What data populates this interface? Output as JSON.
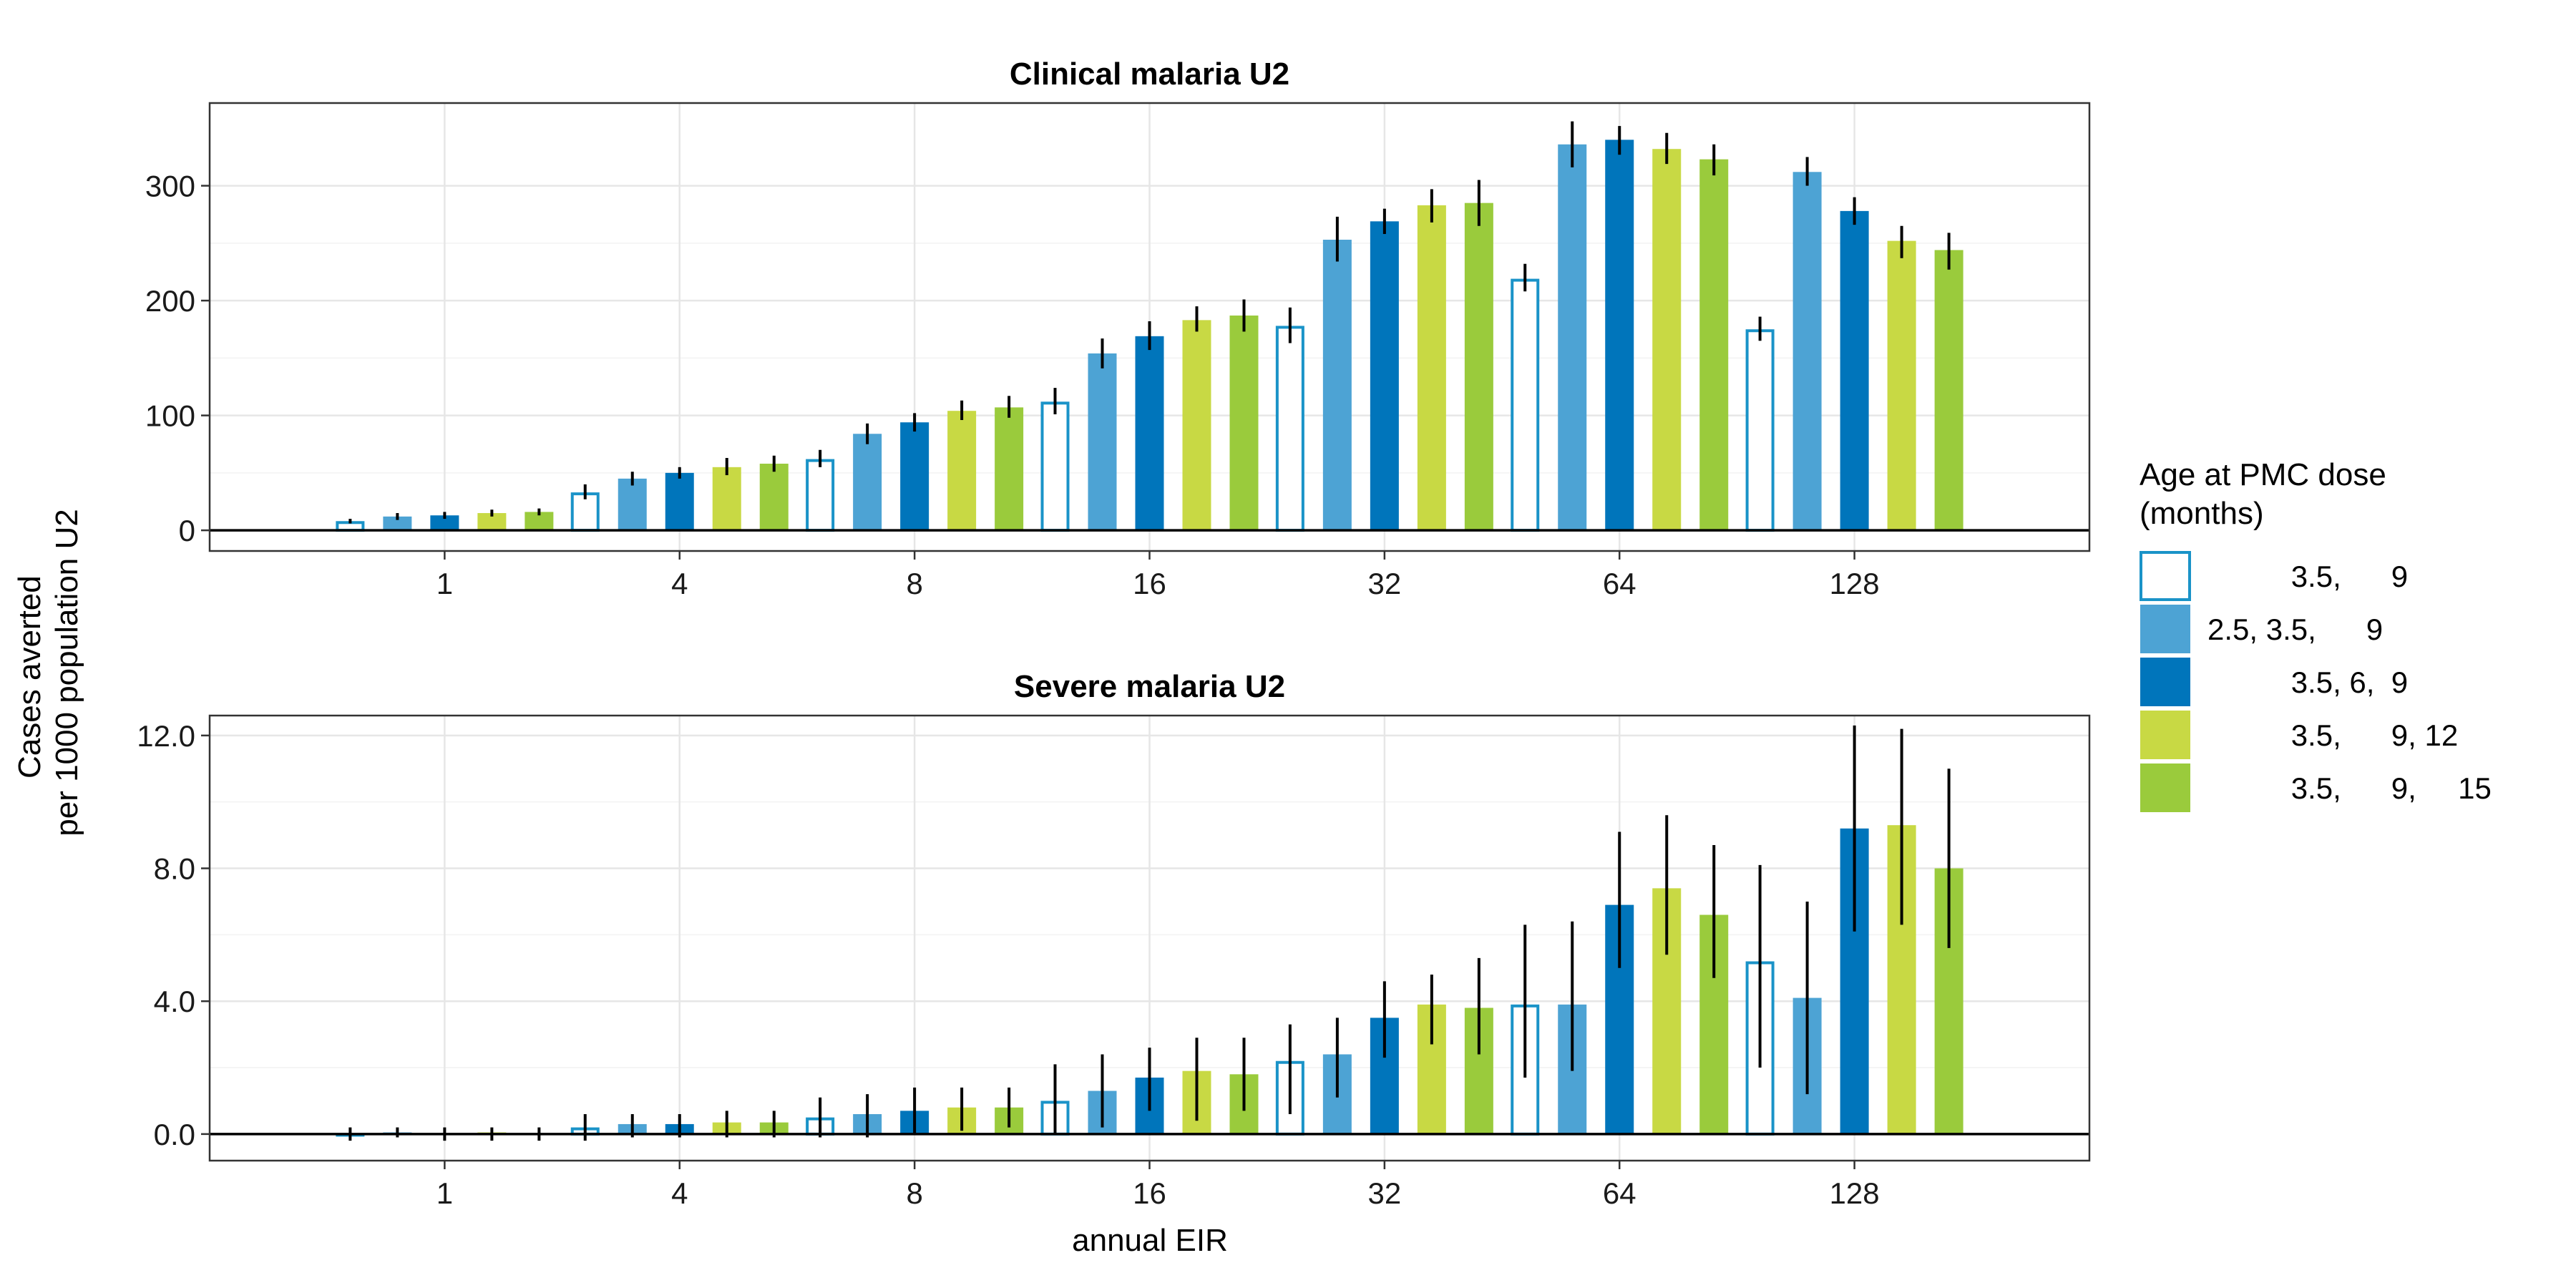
{
  "y_axis_title": [
    "Cases averted",
    "per 1000 population U2"
  ],
  "x_axis_title": "annual EIR",
  "legend": {
    "title": [
      "Age at PMC dose",
      "(months)"
    ],
    "entries": [
      {
        "label": "          3.5,      9",
        "fill": "#ffffff",
        "stroke": "#1a93c8"
      },
      {
        "label": "2.5, 3.5,      9",
        "fill": "#4da3d4",
        "stroke": "#4da3d4"
      },
      {
        "label": "          3.5, 6,  9",
        "fill": "#0075bb",
        "stroke": "#0075bb"
      },
      {
        "label": "          3.5,      9, 12",
        "fill": "#c8d944",
        "stroke": "#c8d944"
      },
      {
        "label": "          3.5,      9,     15",
        "fill": "#9acb3c",
        "stroke": "#9acb3c"
      }
    ]
  },
  "chart_data": [
    {
      "type": "bar",
      "title": "Clinical malaria U2",
      "xlabel": "annual EIR",
      "ylabel": "Cases averted per 1000 population U2",
      "categories": [
        "1",
        "4",
        "8",
        "16",
        "32",
        "64",
        "128"
      ],
      "ylim": [
        -18,
        372
      ],
      "yticks": [
        0,
        100,
        200,
        300
      ],
      "ytick_labels": [
        "0",
        "100",
        "200",
        "300"
      ],
      "grid": true,
      "legend_position": "right",
      "series": [
        {
          "name": "3.5, 9",
          "values": [
            8,
            33,
            62,
            112,
            178,
            219,
            175
          ],
          "lower": [
            6,
            27,
            55,
            101,
            163,
            208,
            165
          ],
          "upper": [
            10,
            40,
            70,
            124,
            194,
            232,
            186
          ]
        },
        {
          "name": "2.5, 3.5, 9",
          "values": [
            12,
            45,
            84,
            154,
            253,
            336,
            312
          ],
          "lower": [
            9,
            39,
            75,
            141,
            234,
            316,
            300
          ],
          "upper": [
            15,
            51,
            93,
            167,
            273,
            356,
            325
          ]
        },
        {
          "name": "3.5, 6, 9",
          "values": [
            13,
            50,
            94,
            169,
            269,
            340,
            278
          ],
          "lower": [
            10,
            45,
            86,
            157,
            258,
            327,
            266
          ],
          "upper": [
            16,
            55,
            102,
            182,
            280,
            352,
            290
          ]
        },
        {
          "name": "3.5, 9, 12",
          "values": [
            15,
            55,
            104,
            183,
            283,
            332,
            252
          ],
          "lower": [
            12,
            48,
            96,
            173,
            268,
            319,
            237
          ],
          "upper": [
            18,
            63,
            113,
            195,
            297,
            346,
            265
          ]
        },
        {
          "name": "3.5, 9, 15",
          "values": [
            16,
            58,
            107,
            187,
            285,
            323,
            244
          ],
          "lower": [
            13,
            51,
            98,
            173,
            265,
            309,
            227
          ],
          "upper": [
            19,
            65,
            117,
            201,
            305,
            336,
            259
          ]
        }
      ]
    },
    {
      "type": "bar",
      "title": "Severe malaria U2",
      "xlabel": "annual EIR",
      "ylabel": "Cases averted per 1000 population U2",
      "categories": [
        "1",
        "4",
        "8",
        "16",
        "32",
        "64",
        "128"
      ],
      "ylim": [
        -0.8,
        12.6
      ],
      "yticks": [
        0,
        4,
        8,
        12
      ],
      "ytick_labels": [
        "0.0",
        "4.0",
        "8.0",
        "12.0"
      ],
      "grid": true,
      "legend_position": "right",
      "series": [
        {
          "name": "3.5, 9",
          "values": [
            0.02,
            0.2,
            0.5,
            1.0,
            2.2,
            3.9,
            5.2
          ],
          "lower": [
            -0.2,
            -0.2,
            -0.1,
            0.0,
            0.6,
            1.7,
            2.0
          ],
          "upper": [
            0.2,
            0.6,
            1.1,
            2.1,
            3.3,
            6.3,
            8.1
          ]
        },
        {
          "name": "2.5, 3.5, 9",
          "values": [
            0.05,
            0.3,
            0.6,
            1.3,
            2.4,
            3.9,
            4.1
          ],
          "lower": [
            -0.1,
            -0.1,
            -0.1,
            0.2,
            1.1,
            1.9,
            1.2
          ],
          "upper": [
            0.2,
            0.6,
            1.2,
            2.4,
            3.5,
            6.4,
            7.0
          ]
        },
        {
          "name": "3.5, 6, 9",
          "values": [
            0.0,
            0.3,
            0.7,
            1.7,
            3.5,
            6.9,
            9.2
          ],
          "lower": [
            -0.2,
            -0.1,
            0.0,
            0.7,
            2.3,
            5.0,
            6.1
          ],
          "upper": [
            0.2,
            0.6,
            1.4,
            2.6,
            4.6,
            9.1,
            12.3
          ]
        },
        {
          "name": "3.5, 9, 12",
          "values": [
            0.05,
            0.35,
            0.8,
            1.9,
            3.9,
            7.4,
            9.3
          ],
          "lower": [
            -0.2,
            -0.1,
            0.1,
            0.4,
            2.7,
            5.4,
            6.3
          ],
          "upper": [
            0.2,
            0.7,
            1.4,
            2.9,
            4.8,
            9.6,
            12.2
          ]
        },
        {
          "name": "3.5, 9, 15",
          "values": [
            0.0,
            0.35,
            0.8,
            1.8,
            3.8,
            6.6,
            8.0
          ],
          "lower": [
            -0.2,
            -0.1,
            0.2,
            0.7,
            2.4,
            4.7,
            5.6
          ],
          "upper": [
            0.2,
            0.7,
            1.4,
            2.9,
            5.3,
            8.7,
            11.0
          ]
        }
      ]
    }
  ]
}
